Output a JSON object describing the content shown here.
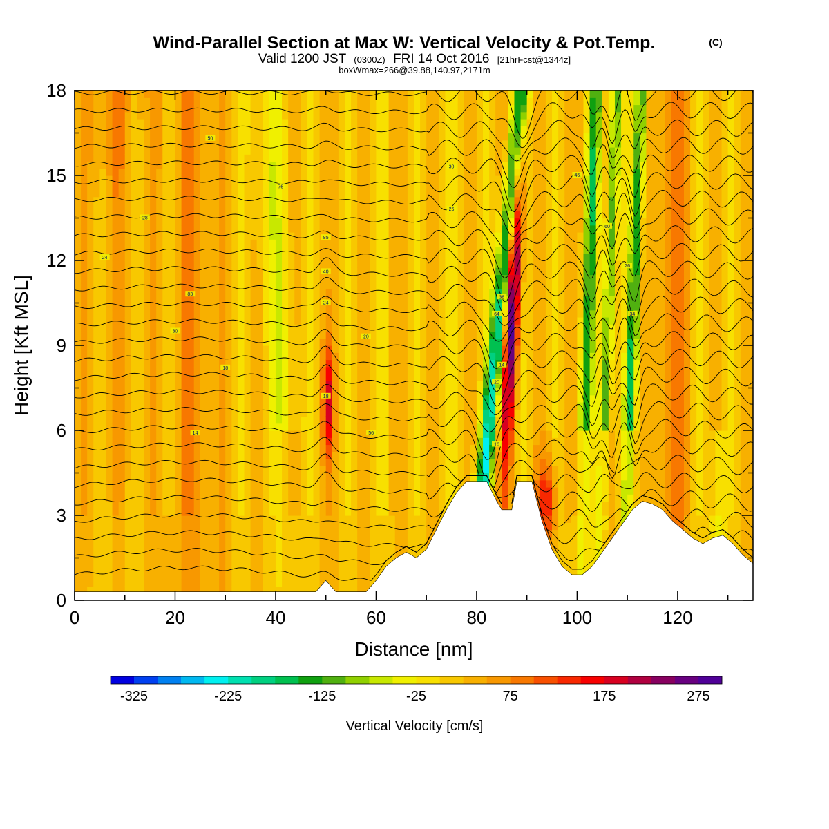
{
  "title": {
    "main": "Wind-Parallel Section at Max W: Vertical Velocity & Pot.Temp.",
    "mark": "(C)",
    "line2_a": "Valid 1200 JST",
    "line2_b": "(0300Z)",
    "line2_c": "FRI 14 Oct 2016",
    "line2_d": "[21hrFcst@1344z]",
    "line3": "boxWmax=266@39.88,140.97,2171m"
  },
  "chart_data": {
    "type": "heatmap",
    "xlabel": "Distance [nm]",
    "ylabel": "Height [Kft MSL]",
    "xlim": [
      0,
      135
    ],
    "ylim": [
      0,
      18
    ],
    "xticks": [
      0,
      20,
      40,
      60,
      80,
      100,
      120
    ],
    "yticks": [
      0,
      3,
      6,
      9,
      12,
      15,
      18
    ],
    "colorbar": {
      "label": "Vertical Velocity [cm/s]",
      "min": -350,
      "max": 300,
      "step": 25,
      "tick_values": [
        -325,
        -225,
        -125,
        -25,
        75,
        175,
        275
      ],
      "tick_labels": [
        "-325",
        "-225",
        "-125",
        "-25",
        "75",
        "175",
        "275"
      ],
      "colors": [
        "#0000e0",
        "#0040f0",
        "#0080f0",
        "#00b8f0",
        "#00f0f0",
        "#00e0b0",
        "#00d080",
        "#00c050",
        "#10a010",
        "#50b010",
        "#90d000",
        "#c8e800",
        "#f0f000",
        "#f8e000",
        "#f8c800",
        "#f8b000",
        "#f89800",
        "#f87800",
        "#f85000",
        "#f82800",
        "#f80000",
        "#d80020",
        "#b00040",
        "#880060",
        "#680080",
        "#500098"
      ]
    },
    "terrain_kft": [
      [
        0,
        0.3
      ],
      [
        48,
        0.3
      ],
      [
        50,
        0.7
      ],
      [
        52,
        0.3
      ],
      [
        58,
        0.3
      ],
      [
        60,
        0.7
      ],
      [
        62,
        1.2
      ],
      [
        64,
        1.5
      ],
      [
        66,
        1.7
      ],
      [
        68,
        1.5
      ],
      [
        70,
        1.8
      ],
      [
        72,
        2.5
      ],
      [
        74,
        3.2
      ],
      [
        76,
        3.8
      ],
      [
        78,
        4.2
      ],
      [
        82,
        4.2
      ],
      [
        84,
        3.5
      ],
      [
        85,
        3.2
      ],
      [
        87,
        3.2
      ],
      [
        88,
        4.2
      ],
      [
        91,
        4.2
      ],
      [
        93,
        2.8
      ],
      [
        95,
        1.8
      ],
      [
        97,
        1.2
      ],
      [
        99,
        0.9
      ],
      [
        101,
        0.9
      ],
      [
        103,
        1.2
      ],
      [
        105,
        1.7
      ],
      [
        107,
        2.2
      ],
      [
        109,
        2.7
      ],
      [
        111,
        3.2
      ],
      [
        113,
        3.5
      ],
      [
        115,
        3.4
      ],
      [
        117,
        3.2
      ],
      [
        119,
        2.8
      ],
      [
        121,
        2.5
      ],
      [
        123,
        2.2
      ],
      [
        125,
        2.0
      ],
      [
        127,
        2.2
      ],
      [
        129,
        2.3
      ],
      [
        131,
        2.0
      ],
      [
        133,
        1.6
      ],
      [
        135,
        1.3
      ]
    ],
    "contour_labels": [
      "50",
      "76",
      "28",
      "24",
      "85",
      "83",
      "30",
      "18",
      "14",
      "40",
      "24",
      "18",
      "56",
      "20",
      "26",
      "30",
      "64",
      "20",
      "16",
      "14",
      "38",
      "46",
      "60",
      "26",
      "34"
    ]
  }
}
